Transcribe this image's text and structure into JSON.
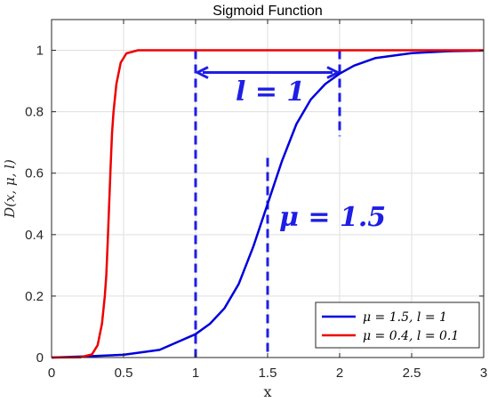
{
  "chart_data": {
    "type": "line",
    "title": "Sigmoid Function",
    "xlabel": "x",
    "ylabel": "D(x, μ, l)",
    "xlim": [
      0,
      3
    ],
    "ylim": [
      0,
      1.1
    ],
    "xticks": [
      0,
      0.5,
      1,
      1.5,
      2,
      2.5,
      3
    ],
    "xtick_labels": [
      "0",
      "0.5",
      "1",
      "1.5",
      "2",
      "2.5",
      "3"
    ],
    "yticks": [
      0,
      0.2,
      0.4,
      0.6,
      0.8,
      1
    ],
    "ytick_labels": [
      "0",
      "0.2",
      "0.4",
      "0.6",
      "0.8",
      "1"
    ],
    "grid": true,
    "legend_position": "bottom-right",
    "series": [
      {
        "name": "μ = 1.5, l = 1",
        "color": "#0000dd",
        "x": [
          0,
          0.25,
          0.5,
          0.75,
          1.0,
          1.1,
          1.2,
          1.3,
          1.4,
          1.5,
          1.6,
          1.7,
          1.8,
          1.9,
          2.0,
          2.1,
          2.25,
          2.5,
          2.75,
          3.0
        ],
        "y": [
          0.0,
          0.004,
          0.009,
          0.025,
          0.076,
          0.11,
          0.16,
          0.24,
          0.36,
          0.5,
          0.64,
          0.76,
          0.84,
          0.89,
          0.924,
          0.95,
          0.975,
          0.991,
          0.997,
          0.999
        ]
      },
      {
        "name": "μ = 0.4, l = 0.1",
        "color": "#ee0000",
        "x": [
          0,
          0.2,
          0.28,
          0.32,
          0.35,
          0.37,
          0.38,
          0.39,
          0.4,
          0.41,
          0.42,
          0.43,
          0.45,
          0.48,
          0.52,
          0.6,
          1.0,
          3.0
        ],
        "y": [
          0.0,
          0.001,
          0.01,
          0.04,
          0.11,
          0.2,
          0.27,
          0.38,
          0.5,
          0.62,
          0.73,
          0.8,
          0.89,
          0.96,
          0.99,
          1.0,
          1.0,
          1.0
        ]
      }
    ],
    "annotations": {
      "l_label": "l = 1",
      "mu_label": "μ = 1.5",
      "color": "#1e1ee6",
      "vertical_lines": [
        1,
        1.5,
        2
      ],
      "arrow_from": 1,
      "arrow_to": 2,
      "arrow_y": 1.0
    }
  }
}
